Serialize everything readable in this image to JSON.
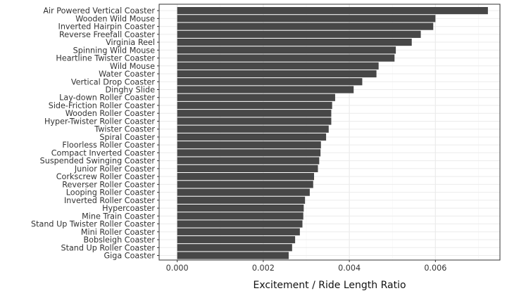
{
  "colors": {
    "bar": "#474747",
    "panel_border": "#333333",
    "grid_major": "#ebebeb",
    "grid_minor": "#f4f4f4",
    "text": "#333333",
    "axis_title": "#111111"
  },
  "chart_data": {
    "type": "bar",
    "orientation": "horizontal",
    "title": "",
    "xlabel": "Excitement / Ride Length Ratio",
    "ylabel": "",
    "xlim": [
      -0.00042,
      0.0075
    ],
    "x_ticks": [
      0,
      0.002,
      0.004,
      0.006
    ],
    "x_tick_labels": [
      "0.000",
      "0.002",
      "0.004",
      "0.006"
    ],
    "grid": true,
    "legend": "none",
    "categories": [
      "Air Powered Vertical Coaster",
      "Wooden Wild Mouse",
      "Inverted Hairpin Coaster",
      "Reverse Freefall Coaster",
      "Virginia Reel",
      "Spinning Wild Mouse",
      "Heartline Twister Coaster",
      "Wild Mouse",
      "Water Coaster",
      "Vertical Drop Coaster",
      "Dinghy Slide",
      "Lay-down Roller Coaster",
      "Side-Friction Roller Coaster",
      "Wooden Roller Coaster",
      "Hyper-Twister Roller Coaster",
      "Twister Coaster",
      "Spiral Coaster",
      "Floorless Roller Coaster",
      "Compact Inverted Coaster",
      "Suspended Swinging Coaster",
      "Junior Roller Coaster",
      "Corkscrew Roller Coaster",
      "Reverser Roller Coaster",
      "Looping Roller Coaster",
      "Inverted Roller Coaster",
      "Hypercoaster",
      "Mine Train Coaster",
      "Stand Up Twister Roller Coaster",
      "Mini Roller Coaster",
      "Bobsleigh Coaster",
      "Stand Up Roller Coaster",
      "Giga Coaster"
    ],
    "values": [
      0.00722,
      0.006,
      0.00595,
      0.00566,
      0.00545,
      0.00508,
      0.00505,
      0.00468,
      0.00463,
      0.0043,
      0.0041,
      0.00367,
      0.0036,
      0.00358,
      0.00358,
      0.00352,
      0.00346,
      0.00334,
      0.00333,
      0.0033,
      0.00327,
      0.00318,
      0.00316,
      0.00308,
      0.00297,
      0.00294,
      0.00293,
      0.00291,
      0.00285,
      0.00274,
      0.00267,
      0.00259
    ]
  }
}
